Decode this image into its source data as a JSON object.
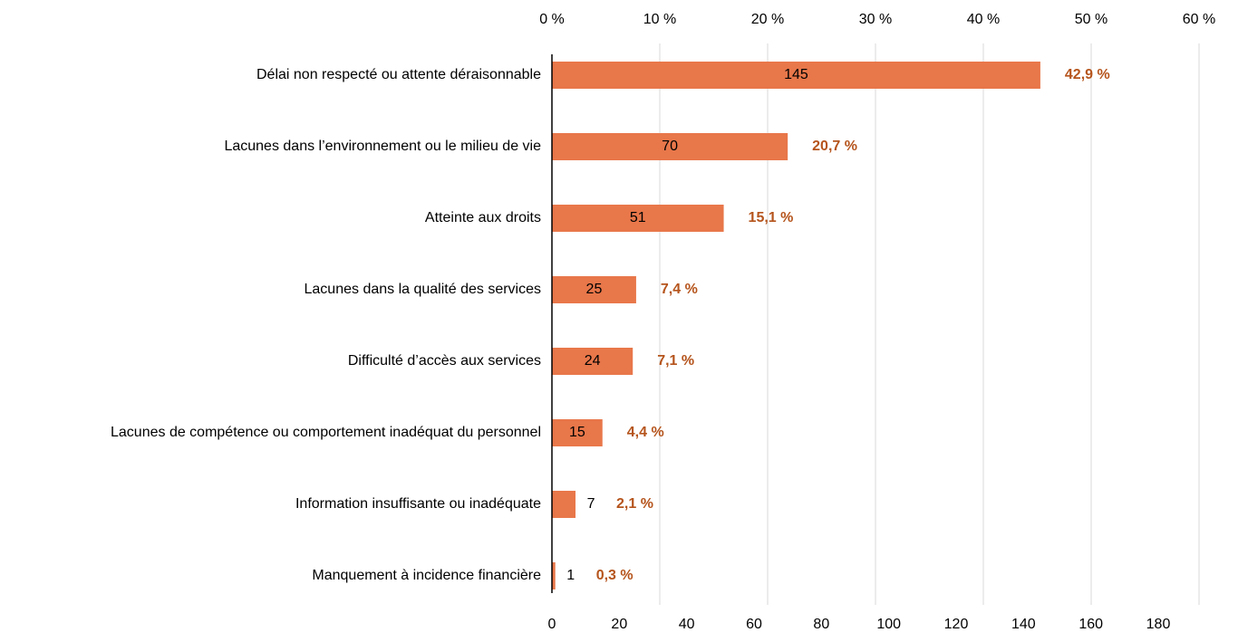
{
  "chart_data": {
    "type": "bar",
    "orientation": "horizontal",
    "color": "#e8774a",
    "categories": [
      "Délai non respecté ou attente déraisonnable",
      "Lacunes dans l’environnement ou le milieu de vie",
      "Atteinte aux droits",
      "Lacunes dans la qualité des services",
      "Difficulté d’accès aux services",
      "Lacunes de compétence ou comportement inadéquat du personnel",
      "Information insuffisante ou inadéquate",
      "Manquement à incidence financière"
    ],
    "values": [
      145,
      70,
      51,
      25,
      24,
      15,
      7,
      1
    ],
    "percent_values": [
      42.9,
      20.7,
      15.1,
      7.4,
      7.1,
      4.4,
      2.1,
      0.3
    ],
    "percent_value_labels": [
      "42,9 %",
      "20,7 %",
      "15,1 %",
      "7,4 %",
      "7,1 %",
      "4,4 %",
      "2,1 %",
      "0,3 %"
    ],
    "percent_color": "#b5541c",
    "xlim": [
      0,
      180
    ],
    "xticks": [
      0,
      20,
      40,
      60,
      80,
      100,
      120,
      140,
      160,
      180
    ],
    "x2lim": [
      0,
      60
    ],
    "x2ticks": [
      {
        "value": 0,
        "label": "0 %"
      },
      {
        "value": 10,
        "label": "10 %"
      },
      {
        "value": 20,
        "label": "20 %"
      },
      {
        "value": 30,
        "label": "30 %"
      },
      {
        "value": 40,
        "label": "40 %"
      },
      {
        "value": 50,
        "label": "50 %"
      },
      {
        "value": 60,
        "label": "60 %"
      }
    ],
    "grid": true
  }
}
